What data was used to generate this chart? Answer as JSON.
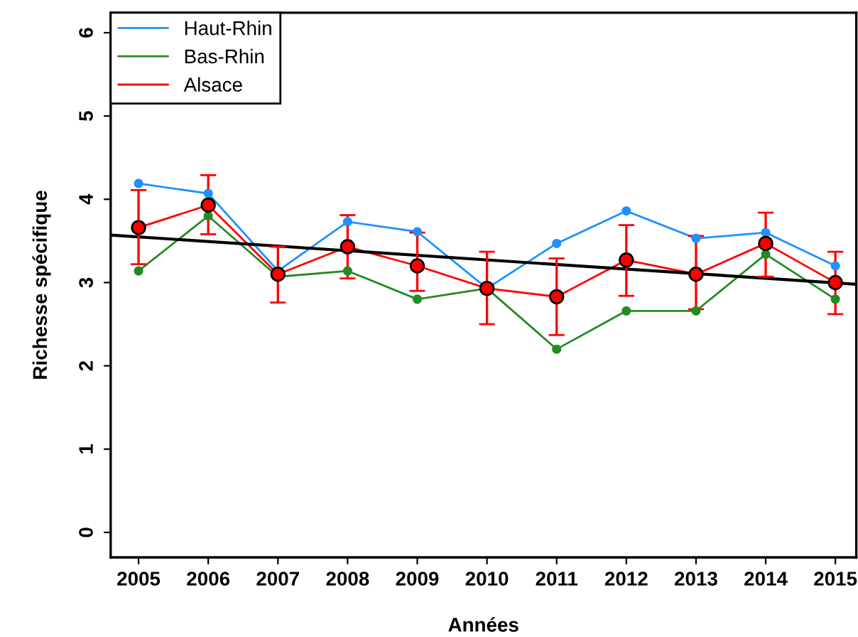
{
  "chart_data": {
    "type": "line",
    "xlabel": "Années",
    "ylabel": "Richesse spécifique",
    "x": [
      2005,
      2006,
      2007,
      2008,
      2009,
      2010,
      2011,
      2012,
      2013,
      2014,
      2015
    ],
    "series": [
      {
        "name": "Haut-Rhin",
        "color": "#1e90ff",
        "values": [
          4.19,
          4.07,
          3.14,
          3.73,
          3.61,
          2.93,
          3.47,
          3.86,
          3.53,
          3.6,
          3.2
        ]
      },
      {
        "name": "Bas-Rhin",
        "color": "#228b22",
        "values": [
          3.14,
          3.8,
          3.07,
          3.14,
          2.8,
          2.93,
          2.2,
          2.66,
          2.66,
          3.34,
          2.8
        ]
      },
      {
        "name": "Alsace",
        "color": "#ff0000",
        "values": [
          3.66,
          3.93,
          3.1,
          3.43,
          3.2,
          2.93,
          2.83,
          3.27,
          3.1,
          3.47,
          3.0
        ],
        "errors": [
          [
            3.22,
            4.11
          ],
          [
            3.58,
            4.29
          ],
          [
            2.76,
            3.43
          ],
          [
            3.05,
            3.81
          ],
          [
            2.9,
            3.6
          ],
          [
            2.5,
            3.37
          ],
          [
            2.37,
            3.29
          ],
          [
            2.84,
            3.69
          ],
          [
            2.68,
            3.56
          ],
          [
            3.07,
            3.84
          ],
          [
            2.62,
            3.37
          ]
        ]
      },
      {
        "type": "line",
        "color": "#000000",
        "x": [
          2004.6,
          2015.3
        ],
        "values": [
          3.57,
          2.98
        ],
        "marker": "none"
      }
    ],
    "xlim": [
      2004.6,
      2015.3
    ],
    "ylim": [
      -0.3,
      6.24
    ],
    "xticks": [
      2005,
      2006,
      2007,
      2008,
      2009,
      2010,
      2011,
      2012,
      2013,
      2014,
      2015
    ],
    "yticks": [
      0,
      1,
      2,
      3,
      4,
      5,
      6
    ],
    "marker": "circle",
    "legend": "top left",
    "grid": false
  }
}
